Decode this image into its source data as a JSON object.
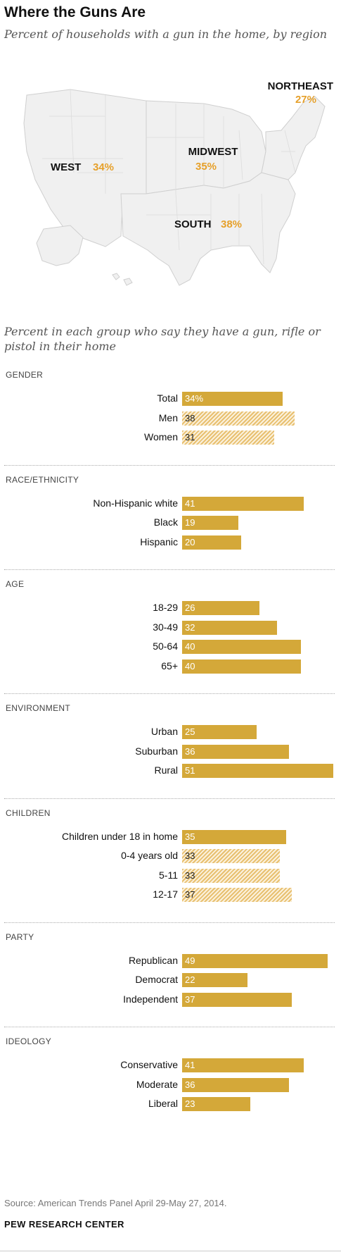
{
  "title": "Where the Guns Are",
  "map_subtitle": "Percent of households with a gun in the home, by region",
  "regions": [
    {
      "name": "NORTHEAST",
      "value": "27%"
    },
    {
      "name": "MIDWEST",
      "value": "35%"
    },
    {
      "name": "WEST",
      "value": "34%"
    },
    {
      "name": "SOUTH",
      "value": "38%"
    }
  ],
  "chart_subtitle": "Percent in each group who say they have a gun, rifle or  pistol in their home",
  "colors": {
    "bar": "#d4a839",
    "region_value": "#e6a02a",
    "hatch": "#e8c070"
  },
  "chart_data": {
    "type": "bar",
    "orientation": "horizontal",
    "groups": [
      {
        "name": "GENDER",
        "rows": [
          {
            "label": "Total",
            "value": 34,
            "display": "34%",
            "style": "solid"
          },
          {
            "label": "Men",
            "value": 38,
            "display": "38",
            "style": "hatched"
          },
          {
            "label": "Women",
            "value": 31,
            "display": "31",
            "style": "hatched"
          }
        ]
      },
      {
        "name": "RACE/ETHNICITY",
        "rows": [
          {
            "label": "Non-Hispanic white",
            "value": 41,
            "display": "41",
            "style": "solid"
          },
          {
            "label": "Black",
            "value": 19,
            "display": "19",
            "style": "solid"
          },
          {
            "label": "Hispanic",
            "value": 20,
            "display": "20",
            "style": "solid"
          }
        ]
      },
      {
        "name": "AGE",
        "rows": [
          {
            "label": "18-29",
            "value": 26,
            "display": "26",
            "style": "solid"
          },
          {
            "label": "30-49",
            "value": 32,
            "display": "32",
            "style": "solid"
          },
          {
            "label": "50-64",
            "value": 40,
            "display": "40",
            "style": "solid"
          },
          {
            "label": "65+",
            "value": 40,
            "display": "40",
            "style": "solid"
          }
        ]
      },
      {
        "name": "ENVIRONMENT",
        "rows": [
          {
            "label": "Urban",
            "value": 25,
            "display": "25",
            "style": "solid"
          },
          {
            "label": "Suburban",
            "value": 36,
            "display": "36",
            "style": "solid"
          },
          {
            "label": "Rural",
            "value": 51,
            "display": "51",
            "style": "solid"
          }
        ]
      },
      {
        "name": "CHILDREN",
        "rows": [
          {
            "label": "Children under 18 in home",
            "value": 35,
            "display": "35",
            "style": "solid"
          },
          {
            "label": "0-4 years old",
            "value": 33,
            "display": "33",
            "style": "hatched"
          },
          {
            "label": "5-11",
            "value": 33,
            "display": "33",
            "style": "hatched"
          },
          {
            "label": "12-17",
            "value": 37,
            "display": "37",
            "style": "hatched"
          }
        ]
      },
      {
        "name": "PARTY",
        "rows": [
          {
            "label": "Republican",
            "value": 49,
            "display": "49",
            "style": "solid"
          },
          {
            "label": "Democrat",
            "value": 22,
            "display": "22",
            "style": "solid"
          },
          {
            "label": "Independent",
            "value": 37,
            "display": "37",
            "style": "solid"
          }
        ]
      },
      {
        "name": "IDEOLOGY",
        "rows": [
          {
            "label": "Conservative",
            "value": 41,
            "display": "41",
            "style": "solid"
          },
          {
            "label": "Moderate",
            "value": 36,
            "display": "36",
            "style": "solid"
          },
          {
            "label": "Liberal",
            "value": 23,
            "display": "23",
            "style": "solid"
          }
        ]
      }
    ]
  },
  "source": "Source: American Trends Panel April 29-May 27, 2014.",
  "brand": "PEW RESEARCH CENTER"
}
